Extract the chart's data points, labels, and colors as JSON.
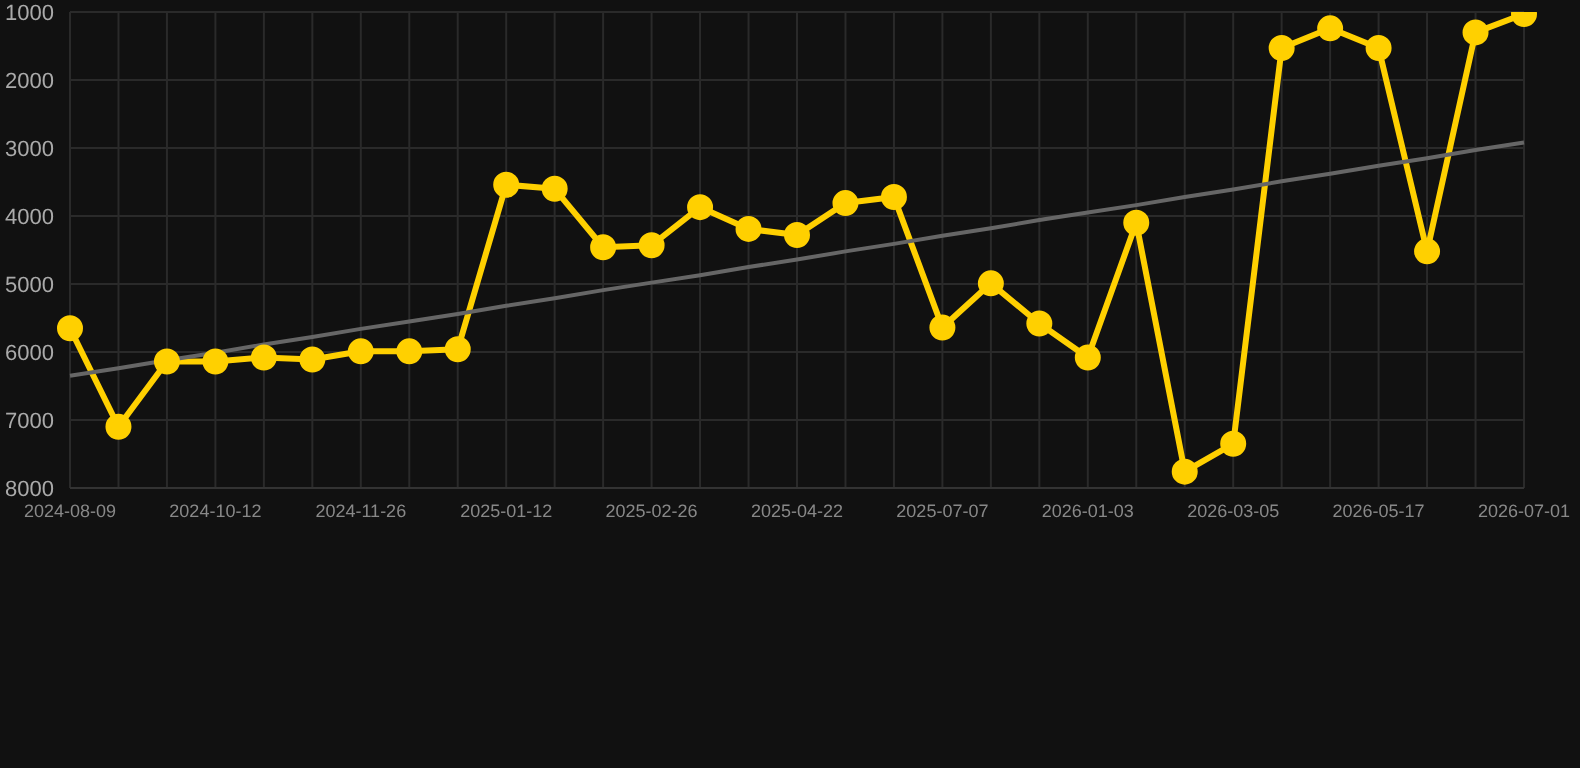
{
  "chart_data": {
    "type": "line",
    "categories": [
      "2024-08-09",
      null,
      null,
      "2024-10-12",
      null,
      null,
      "2024-11-26",
      null,
      null,
      "2025-01-12",
      null,
      null,
      "2025-02-26",
      null,
      null,
      "2025-04-22",
      null,
      null,
      "2025-07-07",
      null,
      null,
      "2026-01-03",
      null,
      null,
      "2026-03-05",
      null,
      null,
      "2026-05-17",
      null,
      null,
      "2026-07-01"
    ],
    "series": [
      {
        "color": "#ffd000",
        "marker": "circle",
        "values": [
          5650,
          7100,
          6140,
          6140,
          6080,
          6110,
          5990,
          5990,
          5960,
          3540,
          3600,
          4460,
          4430,
          3870,
          4190,
          4280,
          3810,
          3720,
          5640,
          4990,
          5580,
          6080,
          4100,
          7760,
          7350,
          1530,
          1240,
          1530,
          4520,
          1300,
          1030
        ]
      },
      {
        "type": "line",
        "color": "#666666",
        "marker": "none",
        "values": [
          6350,
          6240,
          6120,
          6010,
          5890,
          5780,
          5660,
          5550,
          5440,
          5320,
          5210,
          5090,
          4980,
          4870,
          4750,
          4640,
          4520,
          4410,
          4290,
          4180,
          4060,
          3950,
          3840,
          3720,
          3610,
          3490,
          3380,
          3260,
          3150,
          3030,
          2920
        ]
      }
    ],
    "ylim": [
      8000,
      1000
    ],
    "yticks": [
      1000,
      2000,
      3000,
      4000,
      5000,
      6000,
      7000,
      8000
    ],
    "grid": true
  }
}
